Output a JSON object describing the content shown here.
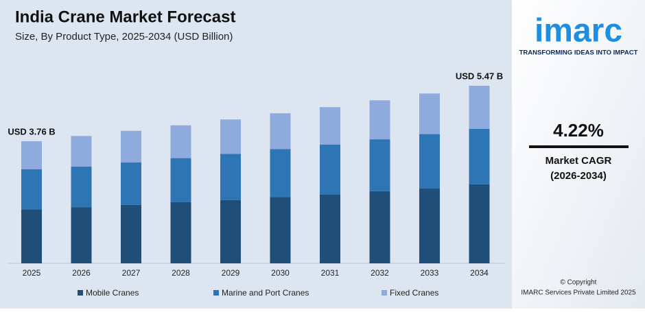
{
  "chart_data": {
    "type": "stacked_bar",
    "title": "India Crane Market Forecast",
    "subtitle": "Size, By Product Type, 2025-2034 (USD Billion)",
    "categories": [
      "2025",
      "2026",
      "2027",
      "2028",
      "2029",
      "2030",
      "2031",
      "2032",
      "2033",
      "2034"
    ],
    "series": [
      {
        "name": "Mobile Cranes",
        "color": "#1f4e79",
        "values": [
          1.66,
          1.73,
          1.8,
          1.88,
          1.95,
          2.04,
          2.12,
          2.22,
          2.31,
          2.43
        ]
      },
      {
        "name": "Marine and Port Cranes",
        "color": "#2e75b6",
        "values": [
          1.24,
          1.25,
          1.31,
          1.36,
          1.42,
          1.48,
          1.54,
          1.6,
          1.67,
          1.71
        ]
      },
      {
        "name": "Fixed Cranes",
        "color": "#8faadc",
        "values": [
          0.86,
          0.94,
          0.97,
          1.01,
          1.06,
          1.1,
          1.15,
          1.2,
          1.25,
          1.33
        ]
      }
    ],
    "annotations": [
      {
        "text": "USD 3.76 B",
        "category": "2025"
      },
      {
        "text": "USD 5.47 B",
        "category": "2034"
      }
    ]
  },
  "sidebar": {
    "logo": "imarc",
    "tagline": "TRANSFORMING IDEAS INTO IMPACT",
    "cagr": "4.22%",
    "cagr_label": "Market CAGR",
    "cagr_period": "(2026-2034)",
    "copyright": "© Copyright",
    "company": "IMARC Services Private Limited 2025"
  }
}
